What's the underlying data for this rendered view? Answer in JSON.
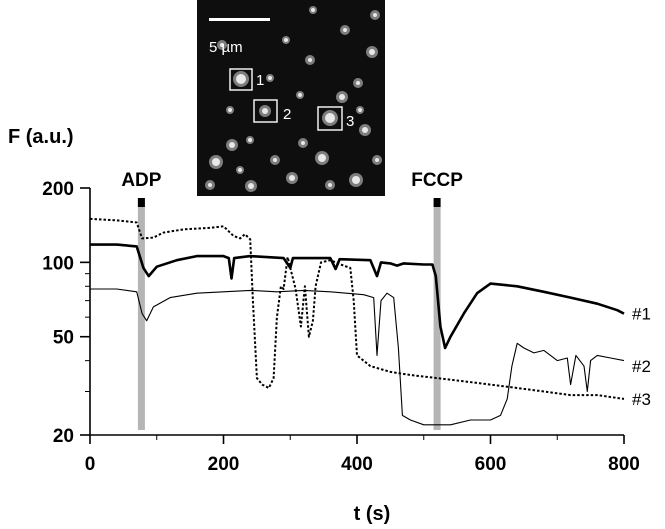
{
  "chart_data": {
    "type": "line",
    "y_axis_title": "F (a.u.)",
    "x_axis_title": "t (s)",
    "y_scale": "log",
    "ylim": [
      20,
      200
    ],
    "xlim": [
      0,
      800
    ],
    "y_ticks": [
      {
        "value": 20,
        "label": "20"
      },
      {
        "value": 50,
        "label": "50"
      },
      {
        "value": 100,
        "label": "100"
      },
      {
        "value": 200,
        "label": "200"
      }
    ],
    "x_ticks": [
      {
        "value": 0,
        "label": "0"
      },
      {
        "value": 200,
        "label": "200"
      },
      {
        "value": 400,
        "label": "400"
      },
      {
        "value": 600,
        "label": "600"
      },
      {
        "value": 800,
        "label": "800"
      }
    ],
    "events": [
      {
        "label": "ADP",
        "t": 77
      },
      {
        "label": "FCCP",
        "t": 520
      }
    ],
    "series": [
      {
        "name": "#1",
        "style": "thick-solid",
        "points": [
          [
            0,
            118
          ],
          [
            40,
            118
          ],
          [
            70,
            116
          ],
          [
            80,
            95
          ],
          [
            88,
            88
          ],
          [
            100,
            96
          ],
          [
            130,
            102
          ],
          [
            160,
            106
          ],
          [
            200,
            106
          ],
          [
            208,
            104
          ],
          [
            212,
            86
          ],
          [
            216,
            104
          ],
          [
            240,
            106
          ],
          [
            290,
            104
          ],
          [
            300,
            95
          ],
          [
            304,
            104
          ],
          [
            360,
            104
          ],
          [
            368,
            94
          ],
          [
            374,
            103
          ],
          [
            420,
            102
          ],
          [
            430,
            88
          ],
          [
            436,
            100
          ],
          [
            450,
            99
          ],
          [
            460,
            97
          ],
          [
            470,
            99
          ],
          [
            500,
            98
          ],
          [
            513,
            98
          ],
          [
            518,
            88
          ],
          [
            525,
            55
          ],
          [
            532,
            45
          ],
          [
            540,
            50
          ],
          [
            560,
            62
          ],
          [
            580,
            75
          ],
          [
            600,
            82
          ],
          [
            640,
            80
          ],
          [
            680,
            76
          ],
          [
            720,
            72
          ],
          [
            760,
            68
          ],
          [
            790,
            64
          ],
          [
            800,
            62
          ]
        ]
      },
      {
        "name": "#2",
        "style": "dotted",
        "points": [
          [
            0,
            150
          ],
          [
            40,
            148
          ],
          [
            70,
            145
          ],
          [
            78,
            125
          ],
          [
            95,
            126
          ],
          [
            110,
            132
          ],
          [
            140,
            136
          ],
          [
            180,
            138
          ],
          [
            200,
            140
          ],
          [
            215,
            128
          ],
          [
            225,
            125
          ],
          [
            232,
            130
          ],
          [
            240,
            124
          ],
          [
            244,
            70
          ],
          [
            250,
            34
          ],
          [
            258,
            32
          ],
          [
            268,
            31
          ],
          [
            275,
            34
          ],
          [
            280,
            60
          ],
          [
            286,
            80
          ],
          [
            290,
            78
          ],
          [
            296,
            105
          ],
          [
            300,
            95
          ],
          [
            308,
            78
          ],
          [
            316,
            55
          ],
          [
            322,
            80
          ],
          [
            328,
            50
          ],
          [
            334,
            58
          ],
          [
            338,
            80
          ],
          [
            346,
            100
          ],
          [
            360,
            102
          ],
          [
            380,
            97
          ],
          [
            390,
            95
          ],
          [
            395,
            70
          ],
          [
            400,
            42
          ],
          [
            420,
            38
          ],
          [
            450,
            36
          ],
          [
            480,
            35
          ],
          [
            520,
            34
          ],
          [
            560,
            33
          ],
          [
            600,
            32
          ],
          [
            640,
            31
          ],
          [
            680,
            30
          ],
          [
            720,
            29
          ],
          [
            760,
            29
          ],
          [
            800,
            28
          ]
        ]
      },
      {
        "name": "#3",
        "style": "thin-solid",
        "points": [
          [
            0,
            78
          ],
          [
            40,
            78
          ],
          [
            70,
            76
          ],
          [
            78,
            62
          ],
          [
            85,
            58
          ],
          [
            95,
            66
          ],
          [
            120,
            72
          ],
          [
            160,
            75
          ],
          [
            200,
            76
          ],
          [
            240,
            77
          ],
          [
            280,
            76
          ],
          [
            320,
            77
          ],
          [
            360,
            76
          ],
          [
            410,
            74
          ],
          [
            425,
            72
          ],
          [
            430,
            42
          ],
          [
            436,
            70
          ],
          [
            445,
            75
          ],
          [
            455,
            72
          ],
          [
            462,
            45
          ],
          [
            468,
            24
          ],
          [
            480,
            23
          ],
          [
            500,
            22
          ],
          [
            540,
            22
          ],
          [
            570,
            23
          ],
          [
            600,
            23
          ],
          [
            615,
            24
          ],
          [
            625,
            28
          ],
          [
            632,
            38
          ],
          [
            640,
            47
          ],
          [
            650,
            45
          ],
          [
            665,
            43
          ],
          [
            680,
            44
          ],
          [
            700,
            40
          ],
          [
            715,
            41
          ],
          [
            720,
            32
          ],
          [
            728,
            42
          ],
          [
            740,
            38
          ],
          [
            745,
            30
          ],
          [
            750,
            40
          ],
          [
            760,
            42
          ],
          [
            780,
            41
          ],
          [
            800,
            40
          ]
        ]
      }
    ],
    "legend_placement": "none",
    "grid": false
  },
  "inset": {
    "scale_bar_label": "5 µm",
    "roi_labels": [
      "1",
      "2",
      "3"
    ]
  }
}
